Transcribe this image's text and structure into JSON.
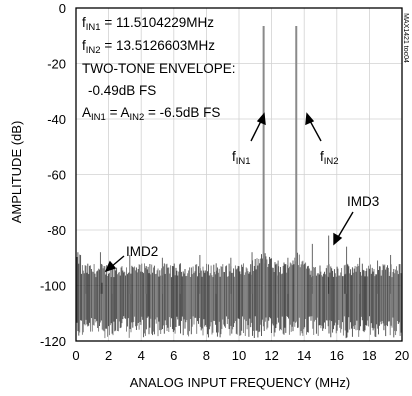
{
  "chart_data": {
    "type": "line",
    "xlabel": "ANALOG INPUT FREQUENCY (MHz)",
    "ylabel": "AMPLITUDE (dB)",
    "xlim": [
      0,
      20
    ],
    "ylim": [
      -120,
      0
    ],
    "x_ticks": [
      "0",
      "2",
      "4",
      "6",
      "8",
      "10",
      "12",
      "14",
      "16",
      "18",
      "20"
    ],
    "y_ticks": [
      "0",
      "-20",
      "-40",
      "-60",
      "-80",
      "-100",
      "-120"
    ],
    "grid": true,
    "noise_floor_db": -103,
    "series": [
      {
        "x": [
          0,
          1.6,
          11.5104229,
          13.5126603,
          15.5,
          16.5
        ],
        "y": [
          -103,
          -99,
          -6.5,
          -6.5,
          -97,
          -96
        ]
      }
    ],
    "spurs": [
      {
        "x": 0.6,
        "y": -93
      },
      {
        "x": 1.5,
        "y": -88
      },
      {
        "x": 2.2,
        "y": -92
      },
      {
        "x": 3.3,
        "y": -89
      },
      {
        "x": 4.3,
        "y": -93
      },
      {
        "x": 5.3,
        "y": -90
      },
      {
        "x": 6.4,
        "y": -92
      },
      {
        "x": 7.6,
        "y": -89
      },
      {
        "x": 8.6,
        "y": -92
      },
      {
        "x": 9.5,
        "y": -90
      },
      {
        "x": 10.8,
        "y": -88
      },
      {
        "x": 12.4,
        "y": -91
      },
      {
        "x": 13.0,
        "y": -90
      },
      {
        "x": 14.5,
        "y": -85
      },
      {
        "x": 15.5,
        "y": -82
      },
      {
        "x": 16.6,
        "y": -86
      },
      {
        "x": 17.4,
        "y": -90
      },
      {
        "x": 18.5,
        "y": -91
      },
      {
        "x": 19.3,
        "y": -89
      }
    ],
    "info": {
      "f1_main": "f",
      "f1_sub": "IN1",
      "f1_val": " = 11.5104229MHz",
      "f2_main": "f",
      "f2_sub": "IN2",
      "f2_val": " = 13.5126603MHz",
      "line3": "TWO-TONE ENVELOPE:",
      "line4": "-0.49dB FS",
      "a_main1": "A",
      "a_sub1": "IN1",
      "a_mid": " = A",
      "a_sub2": "IN2",
      "a_val": " = -6.5dB FS"
    },
    "annotations": {
      "fin1_main": "f",
      "fin1_sub": "IN1",
      "fin2_main": "f",
      "fin2_sub": "IN2",
      "imd2": "IMD2",
      "imd3": "IMD3"
    },
    "side_label": "MAX1421 toc04"
  }
}
